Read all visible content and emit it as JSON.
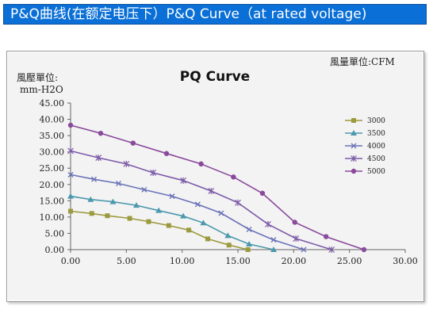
{
  "banner": {
    "title": "P&Q曲线(在额定电压下）P&Q Curve（at rated voltage)"
  },
  "chart_data": {
    "type": "line",
    "title": "PQ Curve",
    "ylabel_line1": "風壓單位:",
    "ylabel_line2": "mm-H2O",
    "unit_note": "風量單位:CFM",
    "xlim": [
      0,
      30
    ],
    "ylim": [
      0,
      45
    ],
    "x_ticks": [
      "0.00",
      "5.00",
      "10.00",
      "15.00",
      "20.00",
      "25.00",
      "30.00"
    ],
    "y_ticks": [
      "0.00",
      "5.00",
      "10.00",
      "15.00",
      "20.00",
      "25.00",
      "30.00",
      "35.00",
      "40.00",
      "45.00"
    ],
    "legend_position": "right",
    "grid": false,
    "series": [
      {
        "name": "3000",
        "color": "#9c9a3e",
        "marker": "square",
        "points": [
          [
            0,
            11.8
          ],
          [
            1.9,
            11.1
          ],
          [
            3.3,
            10.4
          ],
          [
            5.3,
            9.6
          ],
          [
            7.0,
            8.6
          ],
          [
            8.8,
            7.4
          ],
          [
            10.6,
            6.0
          ],
          [
            12.3,
            3.3
          ],
          [
            14.2,
            1.4
          ],
          [
            15.9,
            0.0
          ]
        ]
      },
      {
        "name": "3500",
        "color": "#4c98ad",
        "marker": "triangle",
        "points": [
          [
            0,
            16.4
          ],
          [
            1.8,
            15.4
          ],
          [
            3.8,
            14.7
          ],
          [
            5.9,
            13.6
          ],
          [
            7.9,
            12.0
          ],
          [
            10.1,
            10.3
          ],
          [
            11.9,
            8.2
          ],
          [
            14.1,
            4.3
          ],
          [
            16.0,
            1.7
          ],
          [
            18.2,
            0.0
          ]
        ]
      },
      {
        "name": "4000",
        "color": "#6a73b8",
        "marker": "x",
        "points": [
          [
            0,
            23.0
          ],
          [
            2.1,
            21.6
          ],
          [
            4.3,
            20.3
          ],
          [
            6.6,
            18.4
          ],
          [
            9.1,
            16.4
          ],
          [
            11.4,
            13.9
          ],
          [
            13.5,
            11.2
          ],
          [
            16.0,
            6.2
          ],
          [
            18.2,
            3.0
          ],
          [
            20.9,
            0.0
          ]
        ]
      },
      {
        "name": "4500",
        "color": "#7d5aa8",
        "marker": "star",
        "points": [
          [
            0,
            30.3
          ],
          [
            2.5,
            28.2
          ],
          [
            5.0,
            26.3
          ],
          [
            7.4,
            23.6
          ],
          [
            10.1,
            21.2
          ],
          [
            12.6,
            18.0
          ],
          [
            15.0,
            14.4
          ],
          [
            17.7,
            7.8
          ],
          [
            20.2,
            3.4
          ],
          [
            23.4,
            0.0
          ]
        ]
      },
      {
        "name": "5000",
        "color": "#8a4a9c",
        "marker": "circle",
        "points": [
          [
            0,
            38.2
          ],
          [
            2.7,
            35.7
          ],
          [
            5.6,
            32.7
          ],
          [
            8.6,
            29.5
          ],
          [
            11.7,
            26.3
          ],
          [
            14.6,
            22.3
          ],
          [
            17.2,
            17.3
          ],
          [
            20.1,
            8.4
          ],
          [
            22.9,
            4.0
          ],
          [
            26.3,
            0.0
          ]
        ]
      }
    ]
  }
}
